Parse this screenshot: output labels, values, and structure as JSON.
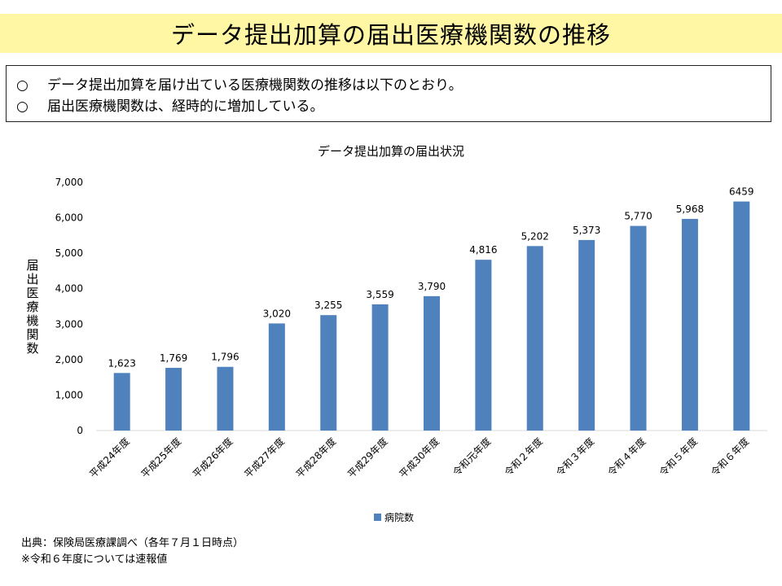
{
  "page": {
    "title": "データ提出加算の届出医療機関数の推移",
    "summary": [
      {
        "bullet": "○",
        "text": "データ提出加算を届け出ている医療機関数の推移は以下のとおり。"
      },
      {
        "bullet": "○",
        "text": "届出医療機関数は、経時的に増加している。"
      }
    ],
    "footnotes": [
      "出典：保険局医療課調べ（各年７月１日時点）",
      "※令和６年度については速報値"
    ]
  },
  "chart_data": {
    "type": "bar",
    "title": "データ提出加算の届出状況",
    "ylabel": "届出医療機関数",
    "xlabel": "",
    "ylim": [
      0,
      7000
    ],
    "yticks": [
      0,
      1000,
      2000,
      3000,
      4000,
      5000,
      6000,
      7000
    ],
    "ytick_labels": [
      "0",
      "1,000",
      "2,000",
      "3,000",
      "4,000",
      "5,000",
      "6,000",
      "7,000"
    ],
    "categories": [
      "平成24年度",
      "平成25年度",
      "平成26年度",
      "平成27年度",
      "平成28年度",
      "平成29年度",
      "平成30年度",
      "令和元年度",
      "令和２年度",
      "令和３年度",
      "令和４年度",
      "令和５年度",
      "令和６年度"
    ],
    "series": [
      {
        "name": "病院数",
        "color": "#4f81bd",
        "values": [
          1623,
          1769,
          1796,
          3020,
          3255,
          3559,
          3790,
          4816,
          5202,
          5373,
          5770,
          5968,
          6459
        ],
        "data_labels": [
          "1,623",
          "1,769",
          "1,796",
          "3,020",
          "3,255",
          "3,559",
          "3,790",
          "4,816",
          "5,202",
          "5,373",
          "5,770",
          "5,968",
          "6459"
        ]
      }
    ],
    "legend_position": "bottom",
    "grid": false
  }
}
